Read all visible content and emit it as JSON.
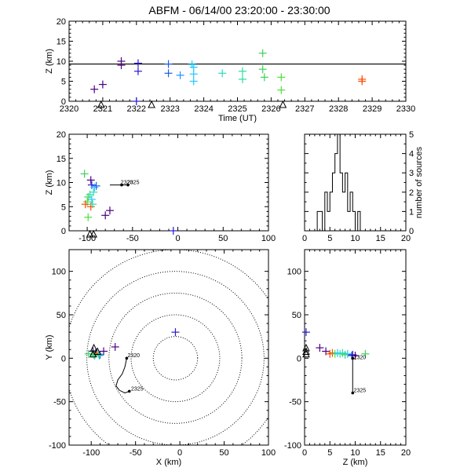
{
  "title": "ABFM - 06/14/00 23:20:00 - 23:30:00",
  "chart_data": [
    {
      "id": "time-height",
      "type": "scatter",
      "xlabel": "Time (UT)",
      "ylabel": "Z (km)",
      "xlim": [
        2320,
        2330
      ],
      "ylim": [
        0,
        20
      ],
      "xticks": [
        2320,
        2321,
        2322,
        2323,
        2324,
        2325,
        2326,
        2327,
        2328,
        2329,
        2330
      ],
      "yticks": [
        0,
        5,
        10,
        15,
        20
      ],
      "reference_line_z": 9.3,
      "stations_x": [
        2320.95,
        2322.45,
        2326.35
      ],
      "points": [
        {
          "x": 2320.75,
          "y": 3.0,
          "c": "#4b0082"
        },
        {
          "x": 2321.0,
          "y": 4.2,
          "c": "#4b0082"
        },
        {
          "x": 2321.55,
          "y": 10.0,
          "c": "#4b0082"
        },
        {
          "x": 2321.55,
          "y": 9.0,
          "c": "#4b0082"
        },
        {
          "x": 2322.05,
          "y": 9.5,
          "c": "#2a1ad0"
        },
        {
          "x": 2322.05,
          "y": 7.5,
          "c": "#2a1ad0"
        },
        {
          "x": 2322.0,
          "y": 0.0,
          "c": "#2a1ad0"
        },
        {
          "x": 2322.95,
          "y": 9.3,
          "c": "#1e5af0"
        },
        {
          "x": 2322.95,
          "y": 7.0,
          "c": "#1e5af0"
        },
        {
          "x": 2323.3,
          "y": 6.5,
          "c": "#1e90ff"
        },
        {
          "x": 2323.65,
          "y": 9.2,
          "c": "#1ec8ff"
        },
        {
          "x": 2323.7,
          "y": 8.5,
          "c": "#1ec8ff"
        },
        {
          "x": 2323.7,
          "y": 6.8,
          "c": "#1ec8ff"
        },
        {
          "x": 2323.7,
          "y": 5.0,
          "c": "#1ec8ff"
        },
        {
          "x": 2324.55,
          "y": 7.0,
          "c": "#2adcc0"
        },
        {
          "x": 2325.15,
          "y": 7.5,
          "c": "#2adca0"
        },
        {
          "x": 2325.15,
          "y": 5.5,
          "c": "#2adca0"
        },
        {
          "x": 2325.75,
          "y": 12.0,
          "c": "#3cd25a"
        },
        {
          "x": 2325.75,
          "y": 8.0,
          "c": "#3cd25a"
        },
        {
          "x": 2325.8,
          "y": 6.0,
          "c": "#3cd25a"
        },
        {
          "x": 2326.3,
          "y": 6.0,
          "c": "#50dc3c"
        },
        {
          "x": 2326.3,
          "y": 2.8,
          "c": "#50dc3c"
        },
        {
          "x": 2328.7,
          "y": 5.5,
          "c": "#ff4a00"
        },
        {
          "x": 2328.7,
          "y": 5.0,
          "c": "#ff4a00"
        }
      ]
    },
    {
      "id": "x-z",
      "type": "scatter",
      "xlabel": "",
      "ylabel": "Z (km)",
      "xlim": [
        -120,
        100
      ],
      "ylim": [
        0,
        20
      ],
      "xticks": [
        -100,
        -50,
        0,
        50,
        100
      ],
      "yticks": [
        0,
        5,
        10,
        15,
        20
      ],
      "stations_x": [
        -97,
        -93
      ],
      "track_labels": [
        "2320",
        "2325"
      ],
      "points": [
        {
          "x": -103,
          "y": 11.8,
          "c": "#3cd25a"
        },
        {
          "x": -96,
          "y": 10.5,
          "c": "#4b0082"
        },
        {
          "x": -95,
          "y": 9.5,
          "c": "#2a1ad0"
        },
        {
          "x": -92,
          "y": 9.0,
          "c": "#1ec8ff"
        },
        {
          "x": -90,
          "y": 9.3,
          "c": "#1e5af0"
        },
        {
          "x": -93,
          "y": 8.0,
          "c": "#2adcc0"
        },
        {
          "x": -97,
          "y": 7.5,
          "c": "#2adca0"
        },
        {
          "x": -99,
          "y": 7.0,
          "c": "#3cd25a"
        },
        {
          "x": -95,
          "y": 6.5,
          "c": "#1ec8ff"
        },
        {
          "x": -100,
          "y": 6.0,
          "c": "#50dc3c"
        },
        {
          "x": -102,
          "y": 5.5,
          "c": "#ff4a00"
        },
        {
          "x": -96,
          "y": 5.0,
          "c": "#ff4a00"
        },
        {
          "x": -94,
          "y": 5.5,
          "c": "#2adca0"
        },
        {
          "x": -99,
          "y": 2.8,
          "c": "#50dc3c"
        },
        {
          "x": -80,
          "y": 3.2,
          "c": "#4b0082"
        },
        {
          "x": -75,
          "y": 4.2,
          "c": "#4b0082"
        },
        {
          "x": -5,
          "y": 0.0,
          "c": "#2a1ad0"
        }
      ]
    },
    {
      "id": "histogram",
      "type": "bar",
      "xlabel": "",
      "ylabel": "number of sources",
      "xlim": [
        0,
        20
      ],
      "ylim": [
        0,
        5
      ],
      "xticks": [
        0,
        5,
        10,
        15,
        20
      ],
      "yticks": [
        0,
        1,
        2,
        3,
        4,
        5
      ],
      "bin_width": 0.5,
      "bin_start": 2.5,
      "values": [
        1,
        1,
        0,
        2,
        1,
        2,
        3,
        4,
        5,
        3,
        2,
        3,
        1,
        2,
        1,
        0,
        1
      ]
    },
    {
      "id": "plan-view",
      "type": "scatter",
      "xlabel": "X (km)",
      "ylabel": "Y (km)",
      "xlim": [
        -125,
        100
      ],
      "ylim": [
        -100,
        125
      ],
      "xticks": [
        -100,
        -50,
        0,
        50,
        100
      ],
      "yticks": [
        -100,
        -50,
        0,
        50,
        100
      ],
      "range_rings_km": [
        25,
        50,
        75,
        100,
        125
      ],
      "center": [
        -5,
        0
      ],
      "stations": [
        [
          -97,
          12
        ],
        [
          -93,
          8
        ],
        [
          -98,
          5
        ]
      ],
      "track_labels": [
        "2320",
        "2325"
      ],
      "points": [
        {
          "x": -103,
          "y": 5,
          "c": "#3cd25a"
        },
        {
          "x": -98,
          "y": 8,
          "c": "#4b0082"
        },
        {
          "x": -95,
          "y": 6,
          "c": "#2a1ad0"
        },
        {
          "x": -92,
          "y": 5,
          "c": "#1ec8ff"
        },
        {
          "x": -90,
          "y": 4,
          "c": "#1e5af0"
        },
        {
          "x": -96,
          "y": 3,
          "c": "#2adcc0"
        },
        {
          "x": -99,
          "y": 5,
          "c": "#2adca0"
        },
        {
          "x": -94,
          "y": 6,
          "c": "#ff4a00"
        },
        {
          "x": -97,
          "y": 4,
          "c": "#50dc3c"
        },
        {
          "x": -91,
          "y": 3,
          "c": "#2adca0"
        },
        {
          "x": -86,
          "y": 8,
          "c": "#4b0082"
        },
        {
          "x": -73,
          "y": 13,
          "c": "#4b0082"
        },
        {
          "x": -5,
          "y": 30,
          "c": "#2a1ad0"
        }
      ]
    },
    {
      "id": "z-y",
      "type": "scatter",
      "xlabel": "Z (km)",
      "ylabel": "",
      "xlim": [
        0,
        20
      ],
      "ylim": [
        -100,
        125
      ],
      "xticks": [
        0,
        5,
        10,
        15,
        20
      ],
      "yticks": [
        -100,
        -50,
        0,
        50,
        100
      ],
      "stations": [
        [
          0.3,
          12
        ],
        [
          0.3,
          8
        ],
        [
          0.3,
          5
        ]
      ],
      "track_labels": [
        "2320",
        "2325"
      ],
      "points": [
        {
          "x": 0.3,
          "y": 30,
          "c": "#2a1ad0"
        },
        {
          "x": 3.0,
          "y": 12,
          "c": "#4b0082"
        },
        {
          "x": 4.2,
          "y": 8,
          "c": "#4b0082"
        },
        {
          "x": 5.0,
          "y": 5,
          "c": "#ff4a00"
        },
        {
          "x": 5.5,
          "y": 6,
          "c": "#ff4a00"
        },
        {
          "x": 6.0,
          "y": 5,
          "c": "#50dc3c"
        },
        {
          "x": 6.5,
          "y": 6,
          "c": "#1ec8ff"
        },
        {
          "x": 7.0,
          "y": 5,
          "c": "#2adcc0"
        },
        {
          "x": 7.5,
          "y": 6,
          "c": "#2adca0"
        },
        {
          "x": 8.0,
          "y": 4,
          "c": "#3cd25a"
        },
        {
          "x": 8.5,
          "y": 5,
          "c": "#1ec8ff"
        },
        {
          "x": 9.3,
          "y": 3,
          "c": "#1e5af0"
        },
        {
          "x": 9.5,
          "y": 4,
          "c": "#2a1ad0"
        },
        {
          "x": 10.0,
          "y": 3,
          "c": "#4b0082"
        },
        {
          "x": 12.0,
          "y": 5,
          "c": "#3cd25a"
        }
      ]
    }
  ]
}
